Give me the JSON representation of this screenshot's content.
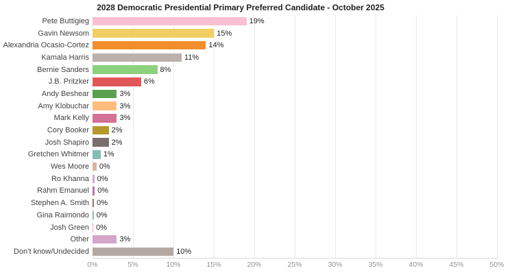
{
  "title": "2028 Democratic Presidential Primary Preferred Candidate - October 2025",
  "chart_data": {
    "type": "bar",
    "orientation": "horizontal",
    "title": "2028 Democratic Presidential Primary Preferred Candidate - October 2025",
    "xlabel": "",
    "ylabel": "",
    "xlim": [
      0,
      50
    ],
    "x_ticks": [
      "0%",
      "5%",
      "10%",
      "15%",
      "20%",
      "25%",
      "30%",
      "35%",
      "40%",
      "45%",
      "50%"
    ],
    "grid": "vertical-light-gray",
    "legend": "none",
    "categories": [
      "Pete Buttigieg",
      "Gavin Newsom",
      "Alexandria Ocasio-Cortez",
      "Kamala Harris",
      "Bernie Sanders",
      "J.B. Pritzker",
      "Andy Beshear",
      "Amy Klobuchar",
      "Mark Kelly",
      "Cory Booker",
      "Josh Shapiro",
      "Gretchen Whitmer",
      "Wes Moore",
      "Ro Khanna",
      "Rahm Emanuel",
      "Stephen A. Smith",
      "Gina Raimondo",
      "Josh Green",
      "Other",
      "Don’t know/Undecided"
    ],
    "values": [
      19,
      15,
      14,
      11,
      8,
      6,
      3,
      3,
      3,
      2,
      2,
      1,
      0,
      0,
      0,
      0,
      0,
      0,
      3,
      10
    ],
    "value_labels": [
      "19%",
      "15%",
      "14%",
      "11%",
      "8%",
      "6%",
      "3%",
      "3%",
      "3%",
      "2%",
      "2%",
      "1%",
      "0%",
      "0%",
      "0%",
      "0%",
      "0%",
      "0%",
      "3%",
      "10%"
    ],
    "render_pct": [
      19,
      15,
      14,
      11,
      8,
      6,
      3,
      3,
      3,
      2,
      2,
      1,
      0.5,
      0.22,
      0.27,
      0.18,
      0.15,
      0.1,
      3,
      10
    ],
    "bar_colors": [
      "#FABFD2",
      "#F1CE63",
      "#F28E2B",
      "#BAB0AC",
      "#8CD17D",
      "#E15759",
      "#59A14F",
      "#FFBE7D",
      "#D37295",
      "#B6992D",
      "#79706E",
      "#86BCB6",
      "#D7B5A6",
      "#D4A6C8",
      "#B07AA1",
      "#9D7660",
      "#86BCB6",
      "#FF9D9A",
      "#D4A6C8",
      "#B3A9A2"
    ],
    "colors": {
      "background": "#ffffff",
      "gridline": "#e9e9e9",
      "axis_line": "#d9d9d9",
      "title_text": "#1e1e1e",
      "category_text": "#414141",
      "value_text": "#1f1f1f",
      "tick_text": "#929292"
    }
  }
}
